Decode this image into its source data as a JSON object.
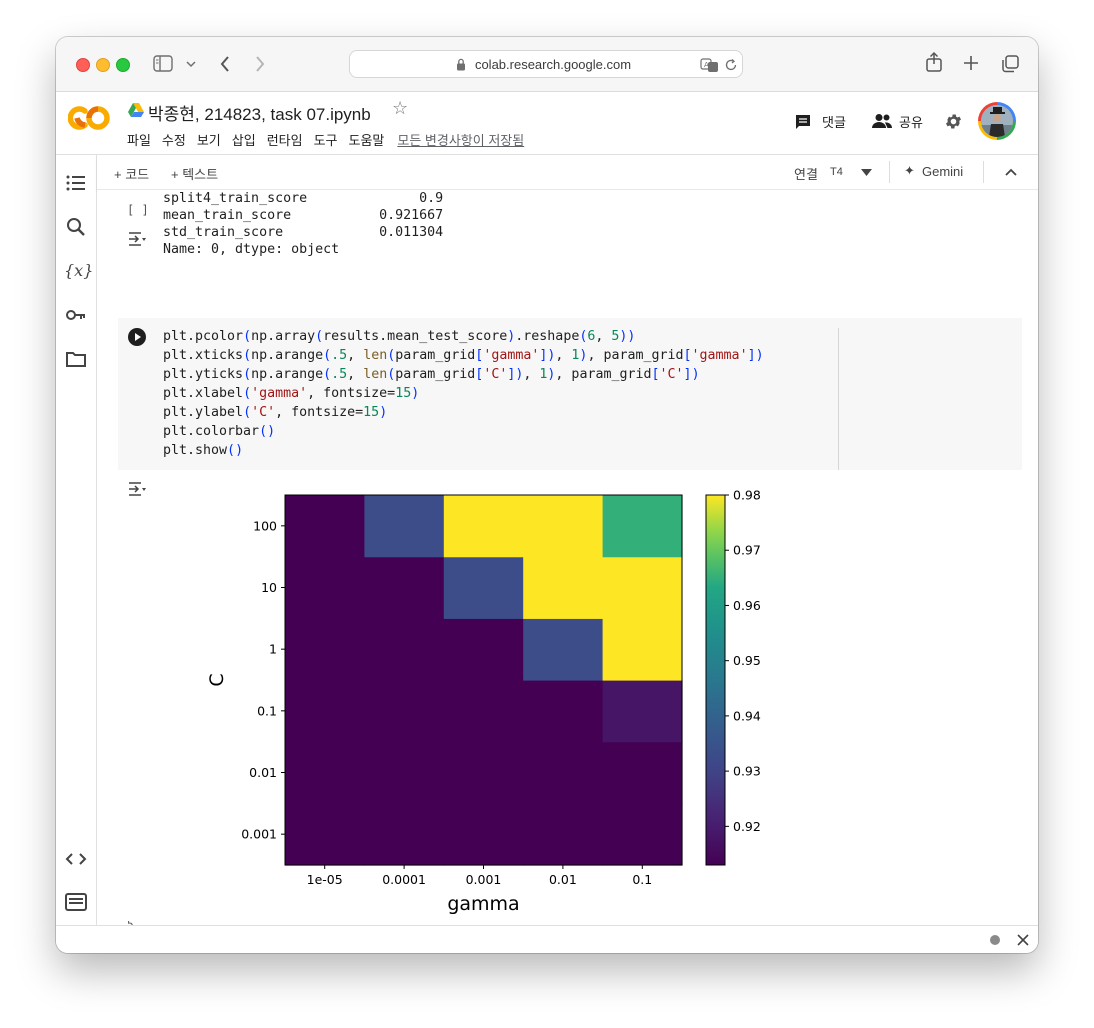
{
  "browser": {
    "url": "colab.research.google.com"
  },
  "header": {
    "title": "박종현, 214823, task 07.ipynb",
    "menu": [
      "파일",
      "수정",
      "보기",
      "삽입",
      "런타임",
      "도구",
      "도움말"
    ],
    "save_status": "모든 변경사항이 저장됨",
    "comment_label": "댓글",
    "share_label": "공유"
  },
  "toolbar": {
    "add_code": "+ 코드",
    "add_text": "+ 텍스트",
    "connect": "연결",
    "runtime": "T4",
    "gemini": "Gemini"
  },
  "output_prev": {
    "bracket": "[ ]",
    "lines": [
      "split4_train_score              0.9",
      "mean_train_score           0.921667",
      "std_train_score            0.011304",
      "Name: 0, dtype: object"
    ]
  },
  "code_cell": {
    "lines": [
      "plt.pcolor(np.array(results.mean_test_score).reshape(6, 5))",
      "plt.xticks(np.arange(.5, len(param_grid['gamma']), 1), param_grid['gamma'])",
      "plt.yticks(np.arange(.5, len(param_grid['C']), 1), param_grid['C'])",
      "plt.xlabel('gamma', fontsize=15)",
      "plt.ylabel('C', fontsize=15)",
      "plt.colorbar()",
      "plt.show()"
    ]
  },
  "next_cell_hint": "5",
  "chart_data": {
    "type": "heatmap",
    "xlabel": "gamma",
    "ylabel": "C",
    "x_categories": [
      "1e-05",
      "0.0001",
      "0.001",
      "0.01",
      "0.1"
    ],
    "y_categories": [
      "0.001",
      "0.01",
      "0.1",
      "1",
      "10",
      "100"
    ],
    "values": [
      [
        0.913,
        0.913,
        0.913,
        0.913,
        0.913
      ],
      [
        0.913,
        0.913,
        0.913,
        0.913,
        0.913
      ],
      [
        0.913,
        0.913,
        0.913,
        0.913,
        0.918
      ],
      [
        0.913,
        0.913,
        0.913,
        0.933,
        0.98
      ],
      [
        0.913,
        0.913,
        0.933,
        0.98,
        0.98
      ],
      [
        0.913,
        0.933,
        0.98,
        0.98,
        0.965
      ]
    ],
    "colorbar": {
      "min": 0.913,
      "max": 0.98,
      "ticks": [
        "0.92",
        "0.93",
        "0.94",
        "0.95",
        "0.96",
        "0.97",
        "0.98"
      ]
    },
    "colormap": "viridis"
  }
}
